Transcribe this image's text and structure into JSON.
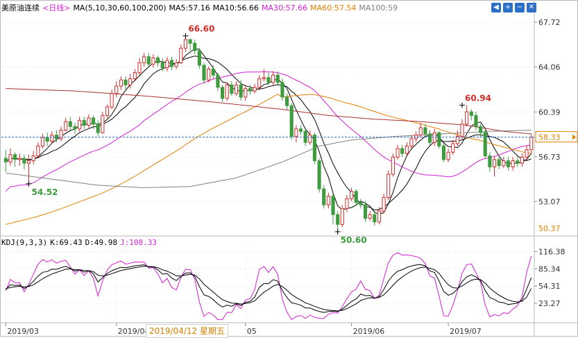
{
  "header": {
    "title": "美原油连续",
    "period": "<日线>",
    "ma_params": "MA(5,10,30,60,100,200)",
    "ma5": "MA5:57.16",
    "ma10": "MA10:56.66",
    "ma30": "MA30:57.66",
    "ma60": "MA60:57.54",
    "ma100": "MA100:59"
  },
  "kdj_header": {
    "params": "KDJ(9,3,3)",
    "k": "K:69.43",
    "d": "D:49.98",
    "j": "J:108.33"
  },
  "toolbar": {
    "prev": "◀",
    "add": "+",
    "zoom_out": "−",
    "close": "✕"
  },
  "date_tip": "2019/04/12 星期五",
  "colors": {
    "up": "#d22b2b",
    "down": "#3e9b3e",
    "ma5": "#000000",
    "ma10": "#000000",
    "ma30": "#d41fd4",
    "ma60": "#e28000",
    "ma100": "#808080",
    "ma200": "#a83232",
    "k": "#000000",
    "d": "#000000",
    "j": "#d41fd4",
    "current_price": "#2b6fc6"
  },
  "chart_data": [
    {
      "type": "candlestick",
      "title": "美原油连续",
      "y_ticks": [
        67.72,
        64.06,
        60.39,
        56.73,
        53.07
      ],
      "ylim": [
        50.37,
        68.4
      ],
      "x_tick_labels": [
        "2019/03",
        "2019/04",
        "05",
        "2019/06",
        "2019/07"
      ],
      "x_tick_index": [
        0,
        24,
        52,
        75,
        96
      ],
      "current_price": 58.33,
      "current_price_label": "58.33",
      "bottom_label": "50.37",
      "annotations": [
        {
          "label": "66.60",
          "index": 39,
          "value": 66.6,
          "anchor": "high",
          "color": "#d22b2b"
        },
        {
          "label": "54.52",
          "index": 5,
          "value": 54.52,
          "anchor": "low",
          "color": "#3e9b3e"
        },
        {
          "label": "50.60",
          "index": 72,
          "value": 50.6,
          "anchor": "low",
          "color": "#3e9b3e"
        },
        {
          "label": "60.94",
          "index": 99,
          "value": 60.94,
          "anchor": "high",
          "color": "#d22b2b"
        }
      ],
      "candles": [
        [
          56.6,
          56.3,
          57.3,
          55.5
        ],
        [
          56.3,
          56.9,
          57.4,
          56.0
        ],
        [
          56.9,
          56.5,
          57.1,
          55.9
        ],
        [
          56.5,
          56.6,
          57.0,
          56.0
        ],
        [
          56.6,
          56.2,
          56.9,
          55.7
        ],
        [
          56.2,
          56.4,
          56.9,
          54.52
        ],
        [
          56.4,
          56.8,
          57.2,
          56.1
        ],
        [
          56.8,
          57.6,
          57.9,
          56.6
        ],
        [
          57.6,
          58.3,
          58.6,
          57.4
        ],
        [
          58.3,
          58.0,
          58.7,
          57.6
        ],
        [
          58.0,
          58.5,
          58.8,
          57.8
        ],
        [
          58.5,
          58.2,
          58.9,
          57.9
        ],
        [
          58.2,
          58.9,
          59.2,
          58.0
        ],
        [
          58.9,
          59.6,
          59.9,
          58.8
        ],
        [
          59.6,
          59.2,
          60.0,
          58.8
        ],
        [
          59.2,
          59.0,
          59.5,
          58.6
        ],
        [
          59.0,
          59.7,
          60.0,
          58.8
        ],
        [
          59.7,
          59.3,
          60.0,
          59.0
        ],
        [
          59.3,
          59.9,
          60.2,
          59.1
        ],
        [
          59.9,
          59.4,
          60.1,
          59.0
        ],
        [
          59.4,
          58.7,
          59.7,
          58.4
        ],
        [
          58.7,
          60.1,
          60.4,
          58.6
        ],
        [
          60.1,
          60.8,
          61.0,
          59.9
        ],
        [
          60.8,
          61.9,
          62.2,
          60.6
        ],
        [
          61.9,
          62.5,
          62.9,
          61.6
        ],
        [
          62.5,
          63.0,
          63.3,
          62.2
        ],
        [
          63.0,
          62.6,
          63.3,
          62.2
        ],
        [
          62.6,
          63.1,
          63.5,
          62.3
        ],
        [
          63.1,
          63.6,
          63.9,
          62.9
        ],
        [
          63.6,
          64.4,
          64.8,
          63.4
        ],
        [
          64.4,
          64.9,
          65.2,
          64.1
        ],
        [
          64.9,
          64.3,
          65.2,
          64.0
        ],
        [
          64.3,
          64.8,
          65.1,
          64.0
        ],
        [
          64.8,
          64.4,
          65.0,
          64.1
        ],
        [
          64.4,
          64.0,
          64.8,
          63.7
        ],
        [
          64.0,
          64.6,
          64.9,
          63.7
        ],
        [
          64.6,
          64.1,
          64.9,
          63.8
        ],
        [
          64.1,
          64.4,
          64.7,
          63.9
        ],
        [
          64.4,
          65.6,
          65.9,
          64.3
        ],
        [
          65.6,
          66.3,
          66.6,
          65.3
        ],
        [
          66.3,
          66.0,
          66.4,
          65.4
        ],
        [
          66.0,
          65.4,
          66.3,
          65.1
        ],
        [
          65.4,
          64.2,
          65.6,
          63.9
        ],
        [
          64.2,
          63.0,
          64.4,
          62.7
        ],
        [
          63.0,
          63.9,
          64.1,
          62.8
        ],
        [
          63.9,
          63.4,
          64.2,
          63.1
        ],
        [
          63.4,
          62.4,
          63.6,
          62.1
        ],
        [
          62.4,
          61.5,
          62.6,
          61.2
        ],
        [
          61.5,
          62.6,
          62.8,
          61.3
        ],
        [
          62.6,
          61.9,
          62.9,
          61.7
        ],
        [
          61.9,
          62.6,
          62.9,
          61.7
        ],
        [
          62.6,
          61.6,
          63.0,
          61.3
        ],
        [
          61.6,
          62.3,
          62.6,
          61.3
        ],
        [
          62.3,
          62.1,
          62.6,
          61.8
        ],
        [
          62.1,
          62.4,
          62.7,
          61.9
        ],
        [
          62.4,
          63.1,
          63.4,
          62.2
        ],
        [
          63.1,
          63.2,
          63.9,
          62.9
        ],
        [
          63.2,
          62.8,
          63.6,
          62.6
        ],
        [
          62.8,
          63.4,
          63.7,
          62.6
        ],
        [
          63.4,
          62.8,
          63.7,
          62.5
        ],
        [
          62.8,
          61.6,
          63.1,
          61.3
        ],
        [
          61.6,
          60.9,
          61.9,
          60.6
        ],
        [
          60.9,
          58.4,
          61.1,
          58.1
        ],
        [
          58.4,
          59.0,
          59.3,
          57.9
        ],
        [
          59.0,
          58.8,
          59.3,
          58.5
        ],
        [
          58.8,
          57.9,
          59.1,
          57.6
        ],
        [
          57.9,
          58.5,
          58.9,
          57.7
        ],
        [
          58.5,
          56.4,
          58.7,
          56.1
        ],
        [
          56.4,
          54.1,
          56.6,
          53.8
        ],
        [
          54.1,
          52.8,
          54.4,
          52.5
        ],
        [
          52.8,
          53.5,
          53.8,
          52.5
        ],
        [
          53.5,
          52.0,
          53.7,
          51.2
        ],
        [
          52.0,
          51.2,
          52.3,
          50.6
        ],
        [
          51.2,
          52.5,
          52.8,
          51.0
        ],
        [
          52.5,
          53.3,
          53.6,
          52.2
        ],
        [
          53.3,
          53.9,
          54.2,
          53.1
        ],
        [
          53.9,
          53.0,
          54.1,
          52.7
        ],
        [
          53.0,
          52.8,
          53.3,
          52.5
        ],
        [
          52.8,
          51.7,
          53.1,
          51.4
        ],
        [
          51.7,
          52.0,
          52.3,
          51.5
        ],
        [
          52.0,
          51.4,
          52.3,
          51.1
        ],
        [
          51.4,
          52.3,
          52.6,
          51.2
        ],
        [
          52.3,
          53.4,
          53.7,
          52.1
        ],
        [
          53.4,
          55.3,
          55.6,
          53.2
        ],
        [
          55.3,
          56.7,
          57.0,
          55.1
        ],
        [
          56.7,
          57.4,
          57.7,
          56.5
        ],
        [
          57.4,
          57.0,
          57.7,
          56.7
        ],
        [
          57.0,
          57.6,
          57.9,
          56.8
        ],
        [
          57.6,
          58.2,
          58.5,
          57.4
        ],
        [
          58.2,
          58.5,
          58.8,
          57.9
        ],
        [
          58.5,
          59.1,
          59.5,
          58.3
        ],
        [
          59.1,
          58.6,
          59.4,
          58.4
        ],
        [
          58.6,
          57.9,
          58.9,
          57.7
        ],
        [
          57.9,
          58.7,
          59.0,
          57.6
        ],
        [
          58.7,
          57.6,
          58.8,
          57.4
        ],
        [
          57.6,
          56.5,
          57.8,
          56.3
        ],
        [
          56.5,
          57.1,
          57.4,
          56.3
        ],
        [
          57.1,
          57.8,
          58.1,
          56.9
        ],
        [
          57.8,
          58.4,
          58.9,
          57.6
        ],
        [
          58.4,
          59.4,
          59.8,
          58.1
        ],
        [
          59.4,
          60.4,
          60.94,
          59.2
        ],
        [
          60.4,
          60.1,
          60.6,
          59.7
        ],
        [
          60.1,
          59.2,
          60.4,
          58.9
        ],
        [
          59.2,
          58.7,
          59.4,
          58.3
        ],
        [
          58.7,
          56.8,
          58.9,
          56.6
        ],
        [
          56.8,
          55.9,
          57.1,
          55.5
        ],
        [
          55.9,
          56.5,
          56.8,
          55.1
        ],
        [
          56.5,
          56.0,
          56.8,
          55.7
        ],
        [
          56.0,
          56.4,
          56.7,
          55.8
        ],
        [
          56.4,
          55.9,
          56.7,
          55.6
        ],
        [
          55.9,
          56.4,
          56.7,
          55.6
        ],
        [
          56.4,
          56.2,
          56.7,
          55.9
        ],
        [
          56.2,
          56.7,
          57.0,
          55.9
        ],
        [
          56.7,
          57.3,
          57.6,
          56.5
        ],
        [
          57.3,
          58.33,
          58.6,
          57.0
        ]
      ],
      "ma_lines": [
        {
          "name": "MA5",
          "color": "#000000"
        },
        {
          "name": "MA10",
          "color": "#000000"
        },
        {
          "name": "MA30",
          "color": "#d41fd4"
        },
        {
          "name": "MA60",
          "color": "#e28000"
        },
        {
          "name": "MA100",
          "points": [
            [
              0,
              55.4
            ],
            [
              10,
              54.9
            ],
            [
              20,
              54.4
            ],
            [
              30,
              54.2
            ],
            [
              40,
              54.3
            ],
            [
              50,
              55.0
            ],
            [
              60,
              56.3
            ],
            [
              68,
              57.6
            ],
            [
              75,
              58.1
            ],
            [
              85,
              58.4
            ],
            [
              95,
              58.6
            ],
            [
              105,
              58.8
            ],
            [
              114,
              58.9
            ]
          ]
        },
        {
          "name": "MA200",
          "points": [
            [
              0,
              62.3
            ],
            [
              15,
              62.1
            ],
            [
              30,
              61.7
            ],
            [
              45,
              61.2
            ],
            [
              60,
              60.6
            ],
            [
              70,
              60.1
            ],
            [
              80,
              59.8
            ],
            [
              90,
              59.6
            ],
            [
              100,
              59.3
            ],
            [
              108,
              58.8
            ],
            [
              114,
              58.6
            ]
          ]
        }
      ]
    },
    {
      "type": "line",
      "title": "KDJ(9,3,3)",
      "y_ticks": [
        116.38,
        85.34,
        54.31,
        23.27
      ],
      "ylim": [
        -8,
        122
      ],
      "series": [
        {
          "name": "K",
          "color": "#000000"
        },
        {
          "name": "D",
          "color": "#000000"
        },
        {
          "name": "J",
          "color": "#d41fd4"
        }
      ],
      "final": {
        "k": 69.43,
        "d": 49.98,
        "j": 108.33
      }
    }
  ]
}
